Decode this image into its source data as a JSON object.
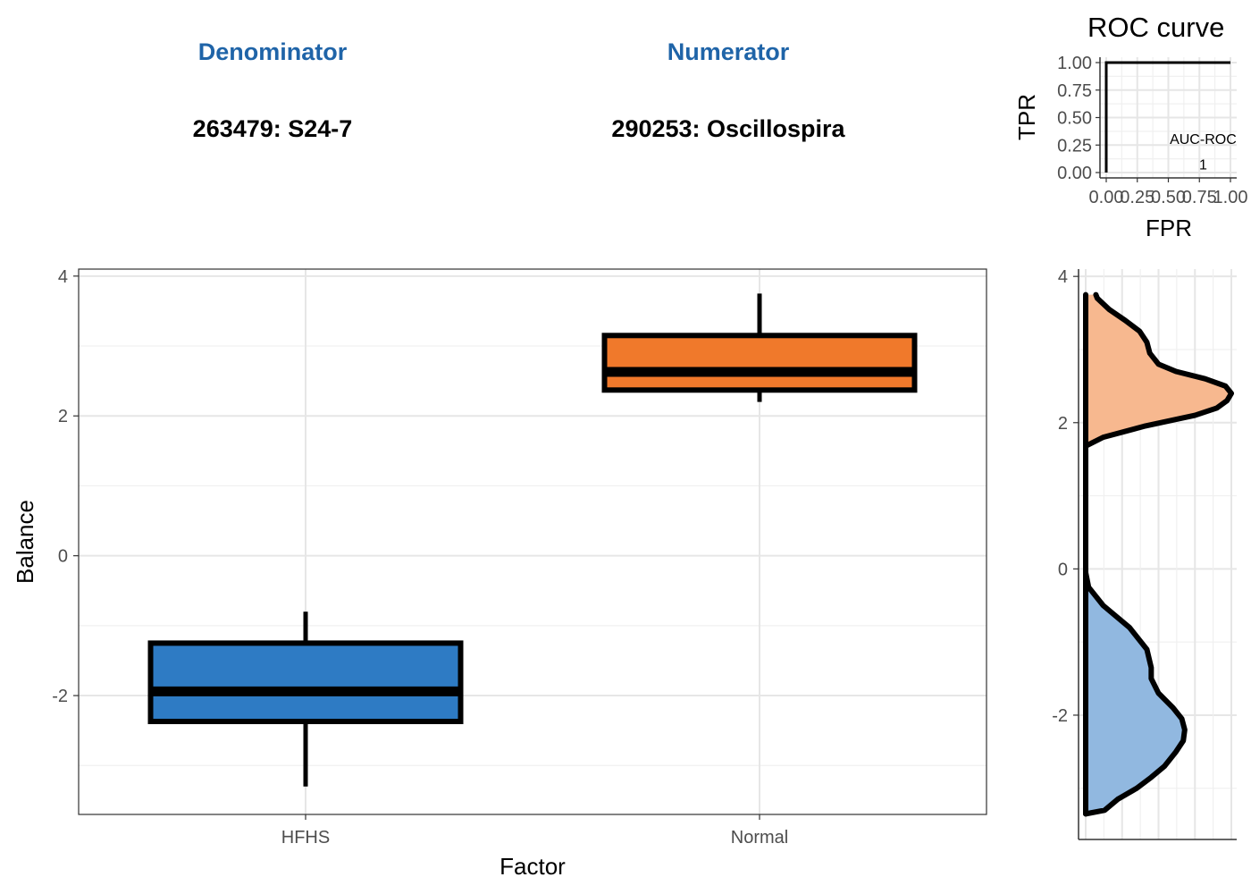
{
  "header": {
    "denominator_title": "Denominator",
    "denominator_value": "263479: S24-7",
    "numerator_title": "Numerator",
    "numerator_value": "290253: Oscillospira"
  },
  "colors": {
    "title_blue": "#1f64a8",
    "hfhs_fill": "#2e7bc4",
    "normal_fill": "#f0792b",
    "hfhs_density": "#91b8e0",
    "normal_density": "#f7b88f"
  },
  "chart_data": [
    {
      "type": "box",
      "xlabel": "Factor",
      "ylabel": "Balance",
      "ylim": [
        -3.7,
        4.1
      ],
      "yticks": [
        -2,
        0,
        2,
        4
      ],
      "ytick_labels": [
        "-2",
        "0",
        "2",
        "4"
      ],
      "categories": [
        "HFHS",
        "Normal"
      ],
      "boxes": [
        {
          "category": "HFHS",
          "whisker_low": -3.3,
          "q1": -2.37,
          "median": -1.94,
          "q3": -1.25,
          "whisker_high": -0.8,
          "color": "#2e7bc4"
        },
        {
          "category": "Normal",
          "whisker_low": 2.2,
          "q1": 2.37,
          "median": 2.63,
          "q3": 3.15,
          "whisker_high": 3.75,
          "color": "#f0792b"
        }
      ],
      "grid": true
    },
    {
      "type": "line",
      "title": "ROC curve",
      "xlabel": "FPR",
      "ylabel": "TPR",
      "xlim": [
        0,
        1
      ],
      "ylim": [
        0,
        1
      ],
      "ticks": [
        0,
        0.25,
        0.5,
        0.75,
        1
      ],
      "xtick_labels": [
        "0.00",
        "0.25",
        "0.50",
        "0.75",
        "1.00"
      ],
      "ytick_labels": [
        "0.00",
        "0.25",
        "0.50",
        "0.75",
        "1.00"
      ],
      "x": [
        0,
        0,
        1
      ],
      "y": [
        0,
        1,
        1
      ],
      "annotation_label": "AUC-ROC",
      "annotation_value": "1",
      "grid": true
    },
    {
      "type": "area",
      "orientation": "vertical density",
      "ylim": [
        -3.7,
        4.1
      ],
      "yticks": [
        -2,
        0,
        2,
        4
      ],
      "ytick_labels": [
        "-2",
        "0",
        "2",
        "4"
      ],
      "series": [
        {
          "group": "Normal",
          "color": "#f7b88f",
          "y": [
            1.68,
            1.8,
            1.95,
            2.1,
            2.2,
            2.3,
            2.4,
            2.5,
            2.6,
            2.7,
            2.8,
            2.95,
            3.1,
            3.25,
            3.4,
            3.55,
            3.7,
            3.75
          ],
          "density": [
            0.0,
            0.12,
            0.4,
            0.75,
            0.9,
            0.97,
            1.0,
            0.96,
            0.82,
            0.62,
            0.5,
            0.44,
            0.42,
            0.37,
            0.27,
            0.16,
            0.08,
            0.07
          ]
        },
        {
          "group": "HFHS",
          "color": "#91b8e0",
          "y": [
            -3.35,
            -3.3,
            -3.15,
            -3.0,
            -2.85,
            -2.7,
            -2.5,
            -2.35,
            -2.2,
            -2.05,
            -1.9,
            -1.7,
            -1.5,
            -1.35,
            -1.1,
            -0.8,
            -0.5,
            -0.25,
            -0.05
          ],
          "density": [
            0.0,
            0.13,
            0.22,
            0.35,
            0.45,
            0.54,
            0.62,
            0.67,
            0.68,
            0.66,
            0.6,
            0.5,
            0.45,
            0.45,
            0.42,
            0.3,
            0.12,
            0.02,
            0.0
          ]
        }
      ],
      "grid": true
    }
  ]
}
